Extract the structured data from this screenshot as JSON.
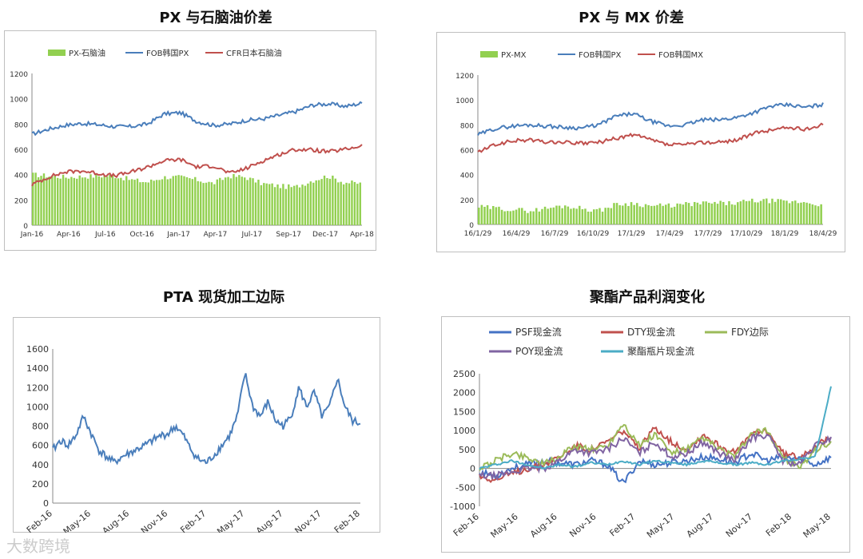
{
  "charts": [
    {
      "type": "bar+line",
      "title": "PX 与石脑油价差",
      "legend": [
        "PX-石脑油",
        "FOB韩国PX",
        "CFR日本石脑油"
      ],
      "colors": {
        "bar": "#92d050",
        "px": "#4a7ebb",
        "naphtha": "#c0504d"
      },
      "yticks": [
        "0",
        "200",
        "400",
        "600",
        "800",
        "1000",
        "1200"
      ],
      "xticks": [
        "Jan-16",
        "Apr-16",
        "Jul-16",
        "Oct-16",
        "Jan-17",
        "Apr-17",
        "Jul-17",
        "Sep-17",
        "Dec-17",
        "Apr-18"
      ],
      "ylim": [
        0,
        1200
      ],
      "series": [
        {
          "name": "FOB韩国PX",
          "values": [
            720,
            760,
            790,
            805,
            795,
            780,
            780,
            800,
            880,
            890,
            820,
            790,
            800,
            830,
            840,
            870,
            900,
            950,
            960,
            940,
            965
          ]
        },
        {
          "name": "CFR日本石脑油",
          "values": [
            320,
            380,
            420,
            430,
            410,
            390,
            420,
            460,
            510,
            520,
            460,
            470,
            410,
            450,
            510,
            560,
            600,
            595,
            580,
            600,
            630
          ]
        },
        {
          "name": "PX-石脑油",
          "values": [
            400,
            390,
            380,
            385,
            390,
            390,
            360,
            340,
            380,
            380,
            360,
            330,
            390,
            380,
            330,
            310,
            300,
            350,
            390,
            340,
            330
          ]
        }
      ]
    },
    {
      "type": "bar+line",
      "title": "PX 与 MX 价差",
      "legend": [
        "PX-MX",
        "FOB韩国PX",
        "FOB韩国MX"
      ],
      "colors": {
        "bar": "#92d050",
        "px": "#4a7ebb",
        "mx": "#c0504d"
      },
      "yticks": [
        "0",
        "200",
        "400",
        "600",
        "800",
        "1000",
        "1200"
      ],
      "xticks": [
        "16/1/29",
        "16/4/29",
        "16/7/29",
        "16/10/29",
        "17/1/29",
        "17/4/29",
        "17/7/29",
        "17/10/29",
        "18/1/29",
        "18/4/29"
      ],
      "ylim": [
        0,
        1200
      ],
      "series": [
        {
          "name": "FOB韩国PX",
          "values": [
            720,
            770,
            790,
            800,
            790,
            780,
            775,
            800,
            870,
            890,
            830,
            790,
            800,
            840,
            840,
            860,
            900,
            950,
            960,
            940,
            965
          ]
        },
        {
          "name": "FOB韩国MX",
          "values": [
            580,
            640,
            670,
            680,
            660,
            660,
            650,
            660,
            690,
            720,
            680,
            640,
            640,
            660,
            660,
            680,
            730,
            760,
            780,
            760,
            810
          ]
        },
        {
          "name": "PX-MX",
          "values": [
            140,
            130,
            120,
            110,
            130,
            150,
            130,
            110,
            160,
            170,
            150,
            150,
            160,
            170,
            170,
            170,
            190,
            190,
            180,
            180,
            160
          ]
        }
      ]
    },
    {
      "type": "line",
      "title": "PTA 现货加工边际",
      "colors": {
        "line": "#4a7ebb"
      },
      "yticks": [
        "0",
        "200",
        "400",
        "600",
        "800",
        "1000",
        "1200",
        "1400",
        "1600"
      ],
      "xticks": [
        "Feb-16",
        "May-16",
        "Aug-16",
        "Nov-16",
        "Feb-17",
        "May-17",
        "Aug-17",
        "Nov-17",
        "Feb-18"
      ],
      "ylim": [
        0,
        1600
      ],
      "series": [
        {
          "name": "",
          "values": [
            550,
            650,
            600,
            700,
            900,
            720,
            550,
            480,
            420,
            480,
            520,
            560,
            600,
            650,
            700,
            720,
            800,
            700,
            550,
            450,
            420,
            500,
            600,
            700,
            900,
            1350,
            1000,
            900,
            1050,
            850,
            800,
            900,
            1200,
            1000,
            1150,
            900,
            1000,
            1300,
            1000,
            850,
            830
          ]
        }
      ]
    },
    {
      "type": "line",
      "title": "聚酯产品利润变化",
      "legend": [
        "PSF现金流",
        "DTY现金流",
        "FDY边际",
        "POY现金流",
        "聚酯瓶片现金流"
      ],
      "colors": {
        "psf": "#4472c4",
        "dty": "#c0504d",
        "fdy": "#9bbb59",
        "poy": "#8064a2",
        "bottle": "#4bacc6"
      },
      "yticks": [
        "-1000",
        "-500",
        "0",
        "500",
        "1000",
        "1500",
        "2000",
        "2500"
      ],
      "xticks": [
        "Feb-16",
        "May-16",
        "Aug-16",
        "Nov-16",
        "Feb-17",
        "May-17",
        "Aug-17",
        "Nov-17",
        "Feb-18",
        "May-18"
      ],
      "ylim": [
        -1000,
        2500
      ],
      "series": [
        {
          "name": "PSF现金流",
          "values": [
            -100,
            -200,
            0,
            100,
            200,
            150,
            100,
            200,
            100,
            -400,
            200,
            100,
            150,
            200,
            300,
            250,
            150,
            400,
            200,
            300,
            250,
            100,
            300
          ]
        },
        {
          "name": "DTY现金流",
          "values": [
            -200,
            -300,
            -150,
            0,
            100,
            300,
            600,
            500,
            700,
            1000,
            500,
            1100,
            700,
            500,
            900,
            600,
            400,
            900,
            1000,
            400,
            300,
            600,
            800
          ]
        },
        {
          "name": "FDY边际",
          "values": [
            0,
            200,
            400,
            300,
            100,
            300,
            600,
            500,
            600,
            1200,
            600,
            900,
            400,
            500,
            800,
            500,
            300,
            900,
            1000,
            300,
            0,
            500,
            700
          ]
        },
        {
          "name": "POY现金流",
          "values": [
            -200,
            -200,
            -100,
            0,
            0,
            200,
            500,
            400,
            500,
            800,
            400,
            700,
            300,
            400,
            700,
            400,
            200,
            800,
            900,
            200,
            100,
            600,
            800
          ]
        },
        {
          "name": "聚酯瓶片现金流",
          "values": [
            0,
            100,
            200,
            100,
            0,
            100,
            50,
            150,
            100,
            200,
            100,
            200,
            150,
            100,
            200,
            150,
            100,
            150,
            100,
            200,
            250,
            300,
            2150
          ]
        }
      ]
    }
  ],
  "watermark": "大数跨境"
}
